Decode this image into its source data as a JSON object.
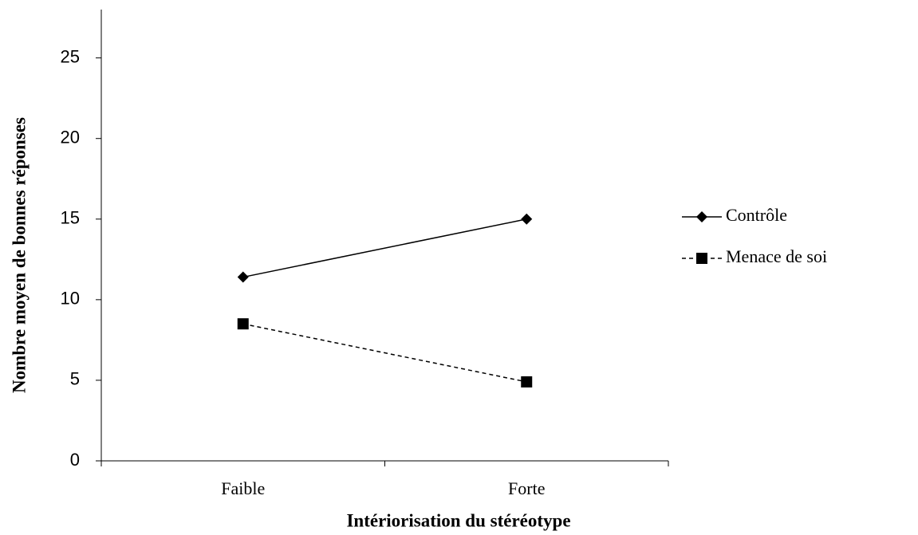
{
  "chart_data": {
    "type": "line",
    "x_label": "Intériorisation du stéréotype",
    "y_label": "Nombre moyen de bonnes réponses",
    "categories": [
      "Faible",
      "Forte"
    ],
    "series": [
      {
        "name": "Contrôle",
        "color": "#000000",
        "marker": "diamond",
        "linestyle": "solid",
        "values": [
          11.4,
          15
        ]
      },
      {
        "name": "Menace de soi",
        "color": "#000000",
        "marker": "square",
        "linestyle": "dashed",
        "values": [
          8.5,
          4.9
        ]
      }
    ],
    "ylim": [
      0,
      28
    ],
    "yticks": [
      0,
      5,
      10,
      15,
      20,
      25
    ],
    "grid": false,
    "legend": "right"
  }
}
